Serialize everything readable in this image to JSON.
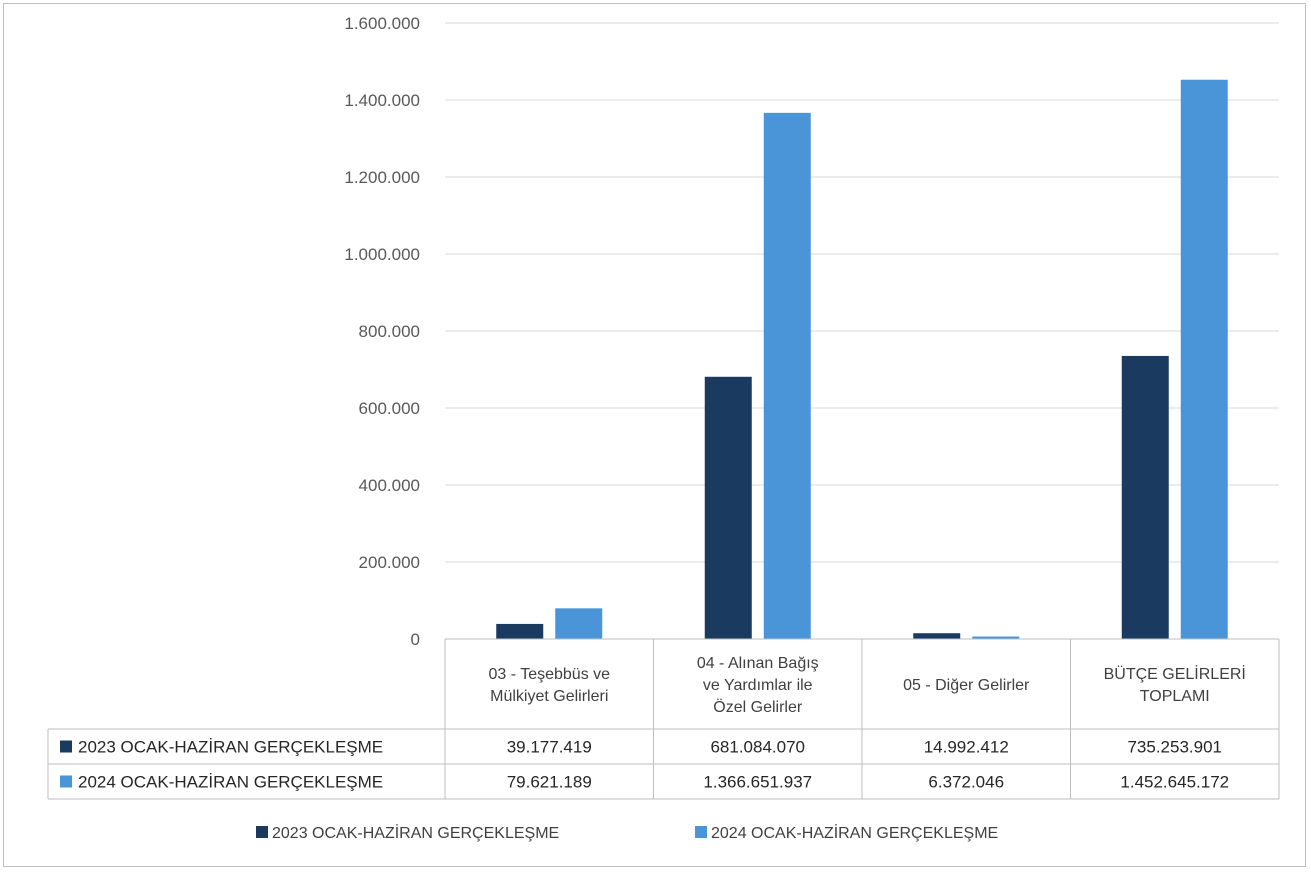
{
  "chart_data": {
    "type": "bar",
    "categories": [
      [
        "03 - Teşebbüs ve",
        "Mülkiyet Gelirleri"
      ],
      [
        "04 - Alınan Bağış",
        "ve Yardımlar ile",
        "Özel Gelirler"
      ],
      [
        "05 - Diğer Gelirler"
      ],
      [
        "BÜTÇE GELİRLERİ",
        "TOPLAMI"
      ]
    ],
    "series": [
      {
        "name": "2023 OCAK-HAZİRAN GERÇEKLEŞME",
        "color": "#1a3a5f",
        "values": [
          39177.419,
          681084.07,
          14992.412,
          735253.901
        ],
        "labels": [
          "39.177.419",
          "681.084.070",
          "14.992.412",
          "735.253.901"
        ]
      },
      {
        "name": "2024 OCAK-HAZİRAN GERÇEKLEŞME",
        "color": "#4a94d8",
        "values": [
          79621.189,
          1366651.937,
          6372.046,
          1452645.172
        ],
        "labels": [
          "79.621.189",
          "1.366.651.937",
          "6.372.046",
          "1.452.645.172"
        ]
      }
    ],
    "yticks": [
      "0",
      "200.000",
      "400.000",
      "600.000",
      "800.000",
      "1.000.000",
      "1.200.000",
      "1.400.000",
      "1.600.000"
    ],
    "ylim": [
      0,
      1600000
    ],
    "grid": true,
    "legend": "bottom",
    "data_table": true
  }
}
